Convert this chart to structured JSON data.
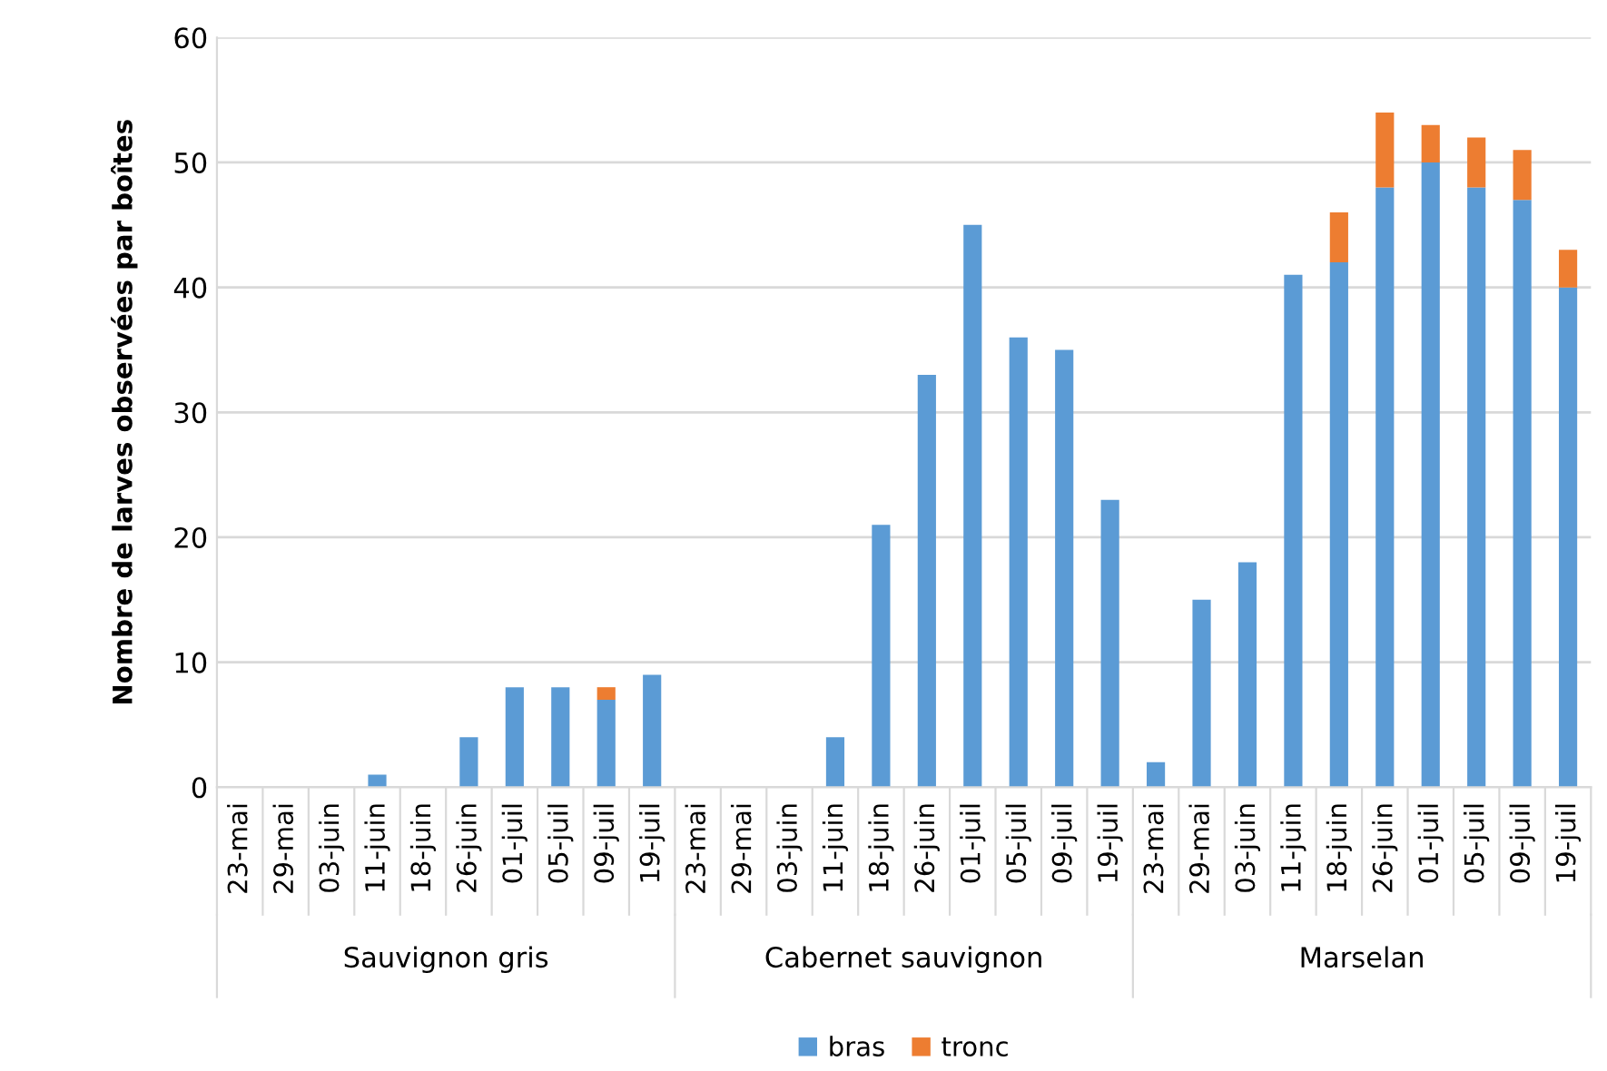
{
  "chart_data": {
    "type": "bar",
    "stacked": true,
    "ylabel": "Nombre de larves observées par boîtes",
    "categories": [
      "23-mai",
      "29-mai",
      "03-juin",
      "11-juin",
      "18-juin",
      "26-juin",
      "01-juil",
      "05-juil",
      "09-juil",
      "19-juil",
      "23-mai",
      "29-mai",
      "03-juin",
      "11-juin",
      "18-juin",
      "26-juin",
      "01-juil",
      "05-juil",
      "09-juil",
      "19-juil",
      "23-mai",
      "29-mai",
      "03-juin",
      "11-juin",
      "18-juin",
      "26-juin",
      "01-juil",
      "05-juil",
      "09-juil",
      "19-juil"
    ],
    "series": [
      {
        "name": "bras",
        "color": "#5b9bd5",
        "values": [
          0,
          0,
          0,
          1,
          0,
          4,
          8,
          8,
          7,
          9,
          0,
          0,
          0,
          4,
          21,
          33,
          45,
          36,
          35,
          23,
          2,
          15,
          18,
          41,
          42,
          48,
          50,
          48,
          47,
          40
        ]
      },
      {
        "name": "tronc",
        "color": "#ed7d31",
        "values": [
          0,
          0,
          0,
          0,
          0,
          0,
          0,
          0,
          1,
          0,
          0,
          0,
          0,
          0,
          0,
          0,
          0,
          0,
          0,
          0,
          0,
          0,
          0,
          0,
          4,
          6,
          3,
          4,
          4,
          3
        ]
      }
    ],
    "annotations": [
      "Sauvignon gris",
      "Cabernet sauvignon",
      "Marselan"
    ],
    "ylim": [
      0,
      60
    ],
    "yticks": [
      0,
      10,
      20,
      30,
      40,
      50,
      60
    ],
    "grid": "y",
    "legend": "bottom"
  }
}
